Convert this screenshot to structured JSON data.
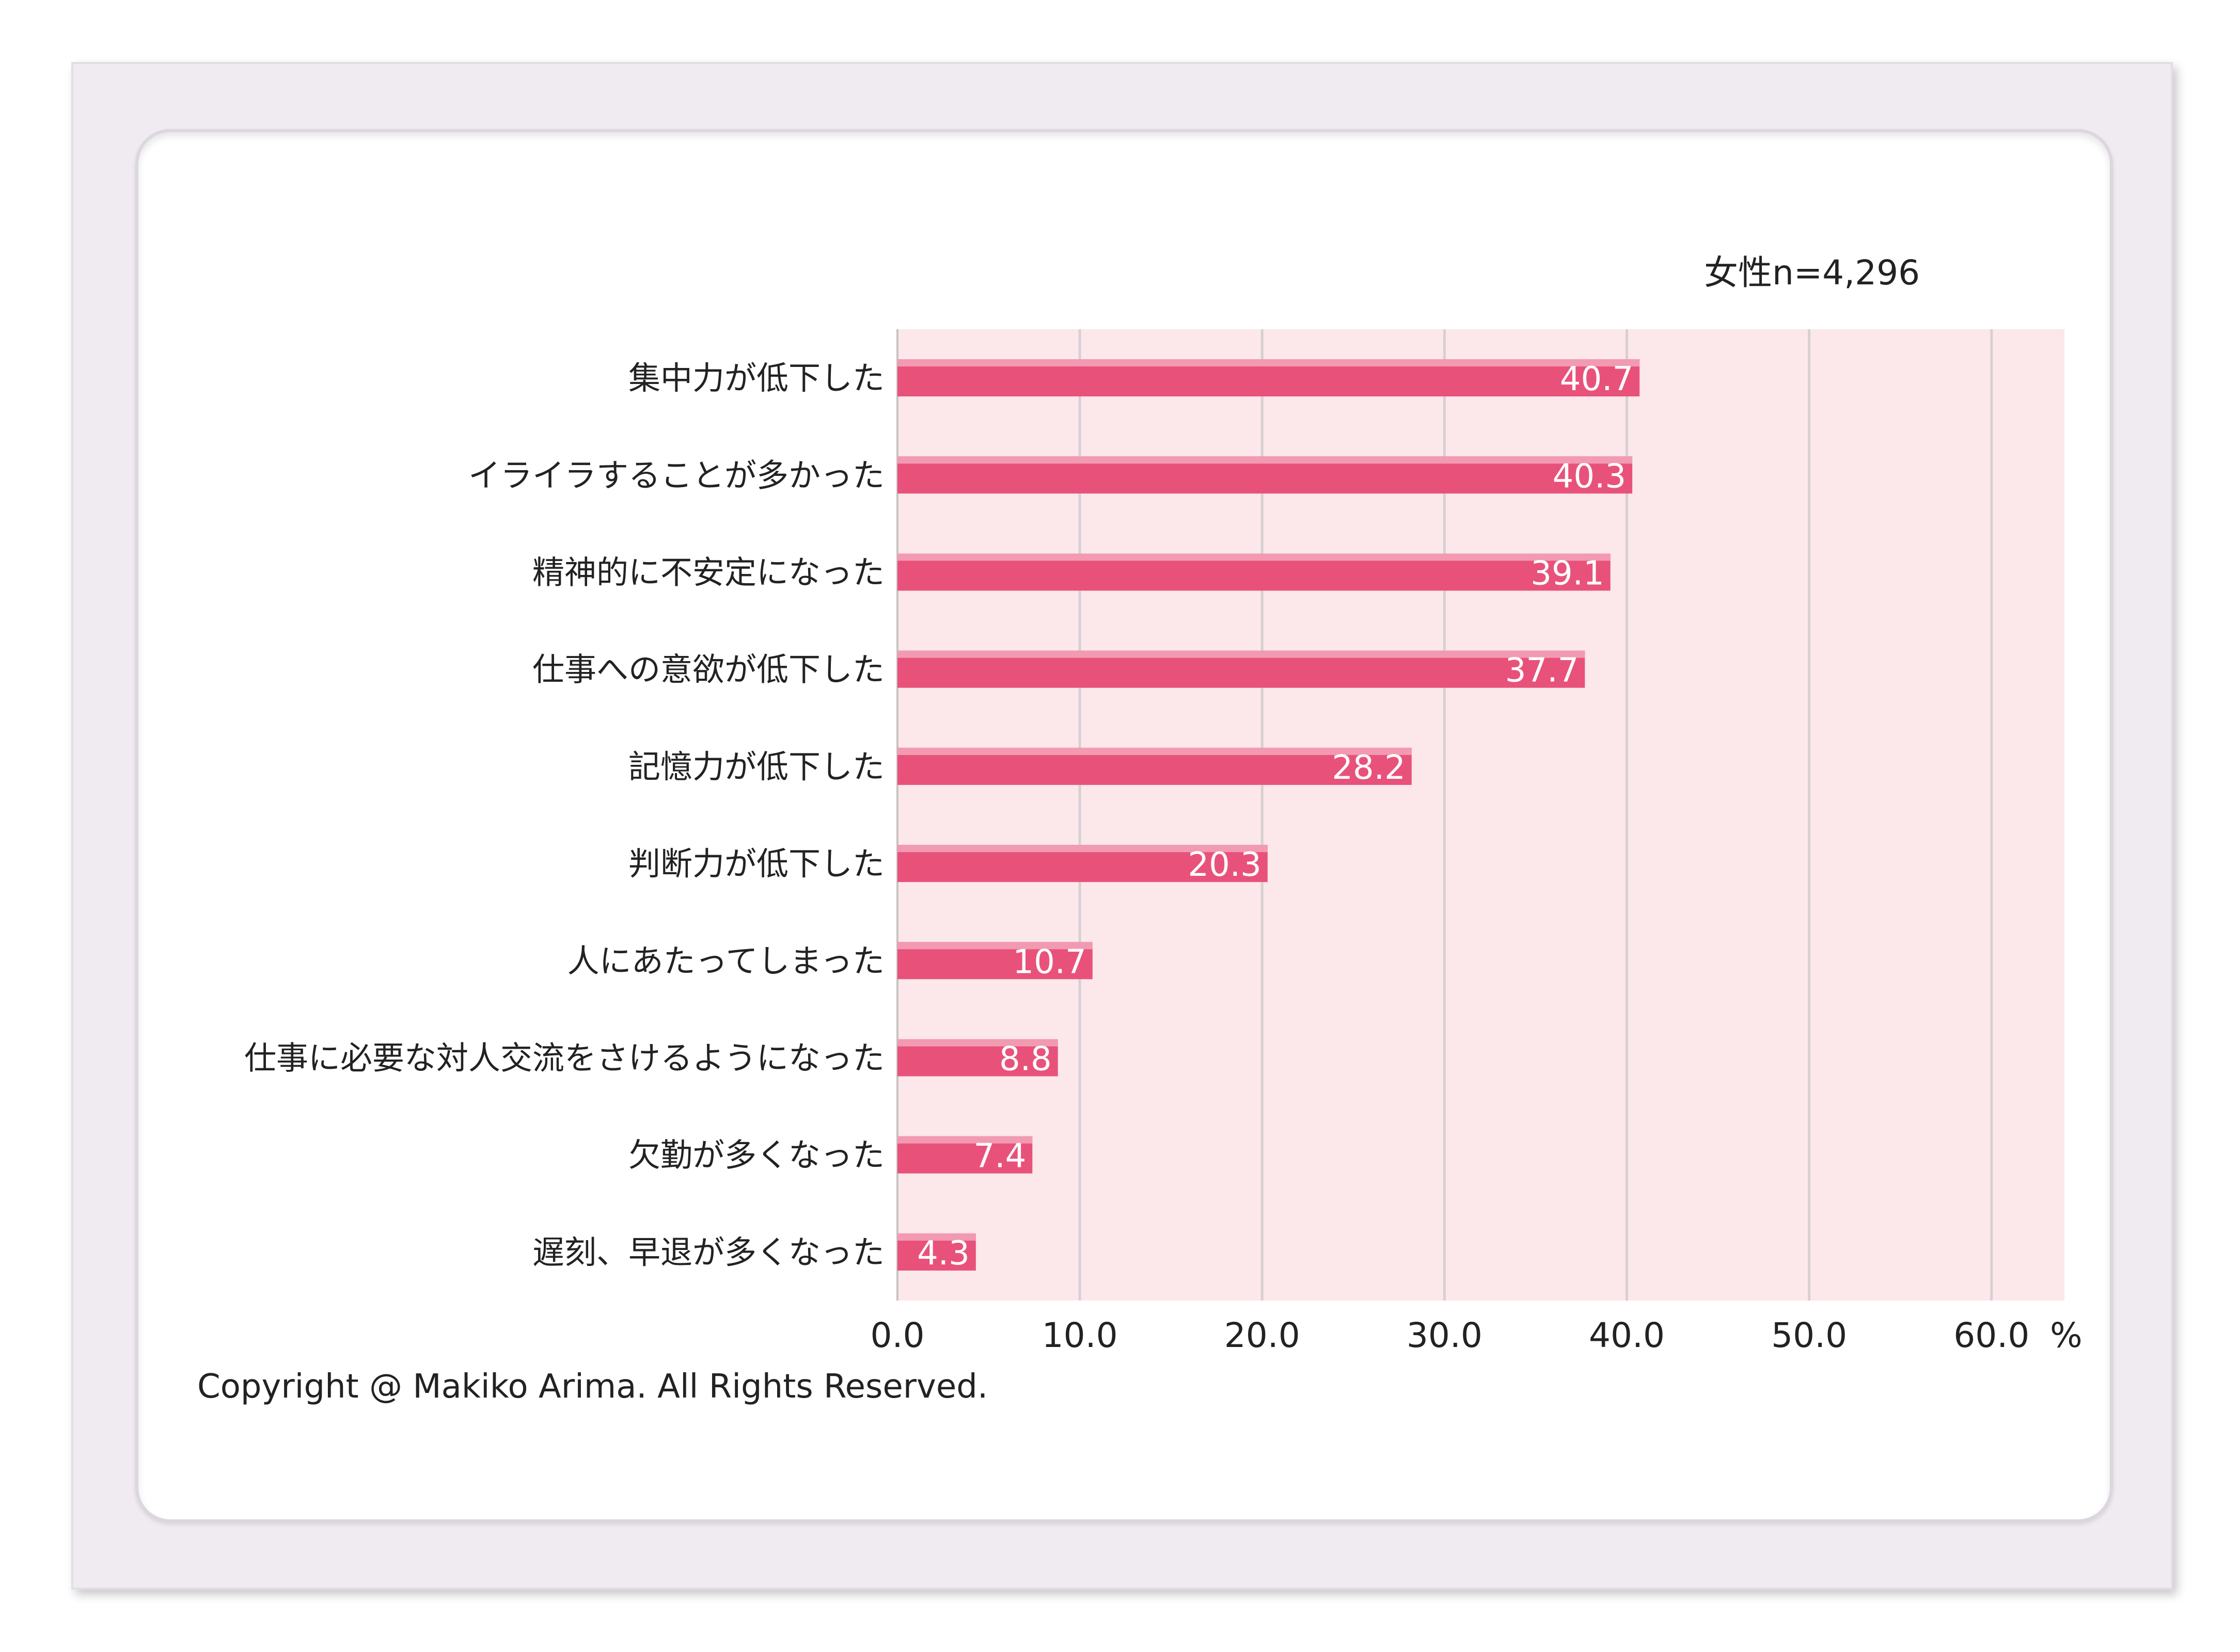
{
  "sample_note": "女性n=4,296",
  "copyright": "Copyright @ Makiko Arima. All Rights Reserved.",
  "colors": {
    "bar": "#e8527a",
    "bar_highlight": "#f29ab2",
    "plot_bg": "#fce7ea",
    "grid": "#d6d0d3"
  },
  "chart_data": {
    "type": "bar",
    "orientation": "horizontal",
    "categories": [
      "集中力が低下した",
      "イライラすることが多かった",
      "精神的に不安定になった",
      "仕事への意欲が低下した",
      "記憶力が低下した",
      "判断力が低下した",
      "人にあたってしまった",
      "仕事に必要な対人交流をさけるようになった",
      "欠勤が多くなった",
      "遅刻、早退が多くなった"
    ],
    "values": [
      40.7,
      40.3,
      39.1,
      37.7,
      28.2,
      20.3,
      10.7,
      8.8,
      7.4,
      4.3
    ],
    "value_labels": [
      "40.7",
      "40.3",
      "39.1",
      "37.7",
      "28.2",
      "20.3",
      "10.7",
      "8.8",
      "7.4",
      "4.3"
    ],
    "xlim": [
      0,
      64
    ],
    "ticks": [
      0,
      10,
      20,
      30,
      40,
      50,
      60
    ],
    "tick_labels": [
      "0.0",
      "10.0",
      "20.0",
      "30.0",
      "40.0",
      "50.0",
      "60.0"
    ],
    "unit_label": "%",
    "grid": true
  }
}
